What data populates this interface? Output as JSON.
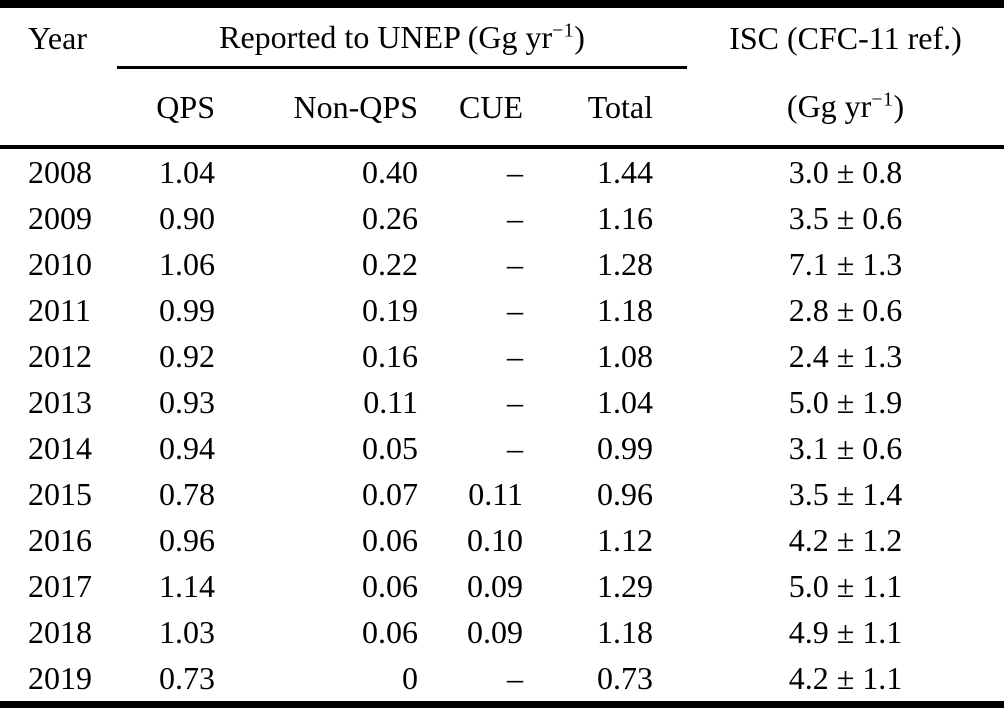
{
  "header": {
    "year": "Year",
    "unep_group": {
      "prefix": "Reported to UNEP (Gg yr",
      "sup": "−1",
      "suffix": ")"
    },
    "subcols": [
      "QPS",
      "Non-QPS",
      "CUE",
      "Total"
    ],
    "isc_line1": "ISC (CFC-11 ref.)",
    "isc_line2": {
      "prefix": "(Gg yr",
      "sup": "−1",
      "suffix": ")"
    }
  },
  "rows": [
    {
      "year": "2008",
      "qps": "1.04",
      "non_qps": "0.40",
      "cue": "–",
      "total": "1.44",
      "isc": "3.0 ± 0.8"
    },
    {
      "year": "2009",
      "qps": "0.90",
      "non_qps": "0.26",
      "cue": "–",
      "total": "1.16",
      "isc": "3.5 ± 0.6"
    },
    {
      "year": "2010",
      "qps": "1.06",
      "non_qps": "0.22",
      "cue": "–",
      "total": "1.28",
      "isc": "7.1 ± 1.3"
    },
    {
      "year": "2011",
      "qps": "0.99",
      "non_qps": "0.19",
      "cue": "–",
      "total": "1.18",
      "isc": "2.8 ± 0.6"
    },
    {
      "year": "2012",
      "qps": "0.92",
      "non_qps": "0.16",
      "cue": "–",
      "total": "1.08",
      "isc": "2.4 ± 1.3"
    },
    {
      "year": "2013",
      "qps": "0.93",
      "non_qps": "0.11",
      "cue": "–",
      "total": "1.04",
      "isc": "5.0 ± 1.9"
    },
    {
      "year": "2014",
      "qps": "0.94",
      "non_qps": "0.05",
      "cue": "–",
      "total": "0.99",
      "isc": "3.1 ± 0.6"
    },
    {
      "year": "2015",
      "qps": "0.78",
      "non_qps": "0.07",
      "cue": "0.11",
      "total": "0.96",
      "isc": "3.5 ± 1.4"
    },
    {
      "year": "2016",
      "qps": "0.96",
      "non_qps": "0.06",
      "cue": "0.10",
      "total": "1.12",
      "isc": "4.2 ± 1.2"
    },
    {
      "year": "2017",
      "qps": "1.14",
      "non_qps": "0.06",
      "cue": "0.09",
      "total": "1.29",
      "isc": "5.0 ± 1.1"
    },
    {
      "year": "2018",
      "qps": "1.03",
      "non_qps": "0.06",
      "cue": "0.09",
      "total": "1.18",
      "isc": "4.9 ± 1.1"
    },
    {
      "year": "2019",
      "qps": "0.73",
      "non_qps": "0",
      "cue": "–",
      "total": "0.73",
      "isc": "4.2 ± 1.1"
    }
  ],
  "colors": {
    "text": "#000000",
    "background": "#ffffff",
    "rule": "#000000"
  }
}
